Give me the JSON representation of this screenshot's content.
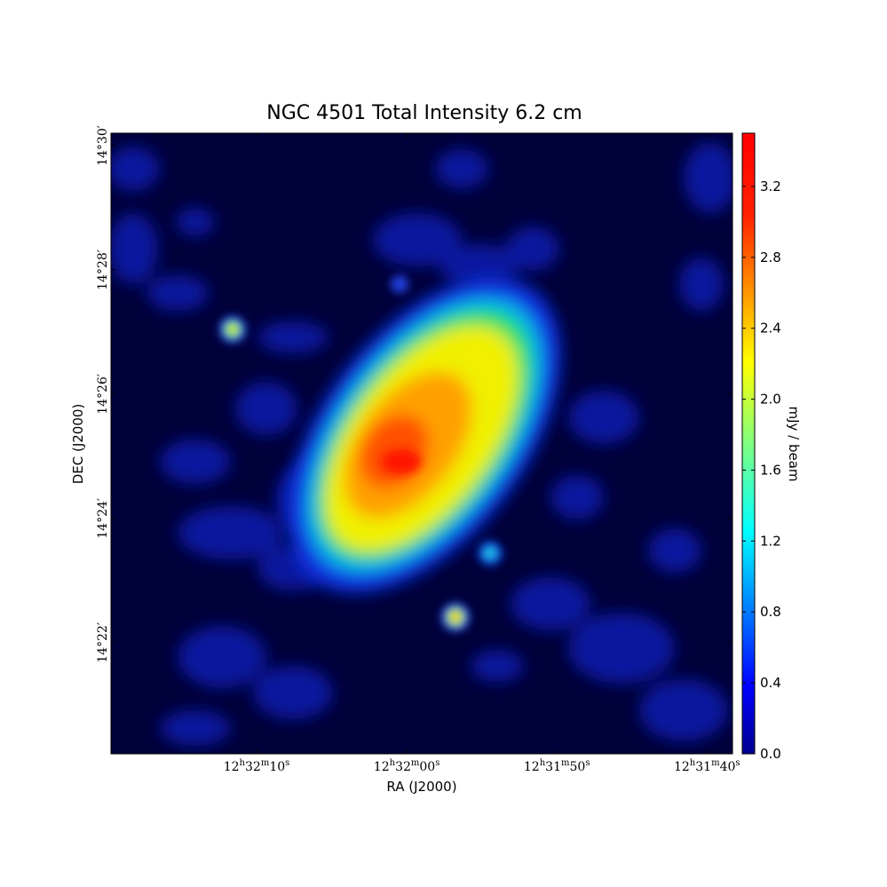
{
  "chart_data": {
    "type": "image",
    "title": "NGC 4501 Total Intensity 6.2 cm",
    "xlabel": "RA (J2000)",
    "ylabel": "DEC (J2000)",
    "colorbar_label": "mJy / beam",
    "colormap": "jet",
    "xlim": [
      45139.7,
      45098.3
    ],
    "xticks": [
      {
        "value": 45130,
        "label": "12h32m10s"
      },
      {
        "value": 45120,
        "label": "12h32m00s"
      },
      {
        "value": 45110,
        "label": "12h31m50s"
      },
      {
        "value": 45100,
        "label": "12h31m40s"
      }
    ],
    "ylim": [
      860.21,
      870.2
    ],
    "yticks": [
      {
        "value": 862,
        "label": "14°22′"
      },
      {
        "value": 864,
        "label": "14°24′"
      },
      {
        "value": 866,
        "label": "14°26′"
      },
      {
        "value": 868,
        "label": "14°28′"
      },
      {
        "value": 870,
        "label": "14°30′"
      }
    ],
    "clim": [
      0,
      3.5
    ],
    "cticks": [
      {
        "value": 0,
        "label": "0.0"
      },
      0.4,
      0.8,
      1.2,
      1.6,
      {
        "value": 2,
        "label": "2.0"
      },
      2.4,
      2.8,
      3.2
    ]
  }
}
